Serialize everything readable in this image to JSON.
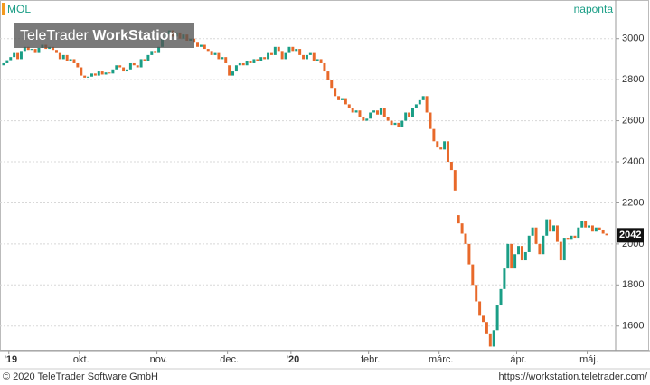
{
  "chart_data": {
    "type": "candlestick",
    "title": "MOL",
    "subtitle": "naponta",
    "watermark_brand": "TeleTrader",
    "watermark_product": "WorkStation",
    "footer_left": "© 2020 TeleTrader Software GmbH",
    "footer_right": "https://workstation.teletrader.com/",
    "up_color": "#1a9e86",
    "down_color": "#e8692a",
    "grid": true,
    "ylim": [
      1480,
      3100
    ],
    "yticks": [
      1600,
      1800,
      2000,
      2200,
      2400,
      2600,
      2800,
      3000
    ],
    "categories": [
      null,
      null,
      "'19",
      null,
      null,
      null,
      null,
      null,
      null,
      null,
      null,
      null,
      null,
      null,
      null,
      null,
      null,
      null,
      null,
      null,
      null,
      null,
      "okt.",
      null,
      null,
      null,
      null,
      null,
      null,
      null,
      null,
      null,
      null,
      null,
      null,
      null,
      null,
      null,
      null,
      null,
      null,
      null,
      null,
      null,
      "nov.",
      null,
      null,
      null,
      null,
      null,
      null,
      null,
      null,
      null,
      null,
      null,
      null,
      null,
      null,
      null,
      null,
      null,
      null,
      null,
      "dec.",
      null,
      null,
      null,
      null,
      null,
      null,
      null,
      null,
      null,
      null,
      null,
      null,
      null,
      null,
      null,
      null,
      null,
      "'20",
      null,
      null,
      null,
      null,
      null,
      null,
      null,
      null,
      null,
      null,
      null,
      null,
      null,
      null,
      null,
      null,
      null,
      null,
      null,
      null,
      null,
      "febr.",
      null,
      null,
      null,
      null,
      null,
      null,
      null,
      null,
      null,
      null,
      null,
      null,
      null,
      null,
      null,
      null,
      null,
      null,
      null,
      "márc.",
      null,
      null,
      null,
      null,
      null,
      null,
      null,
      null,
      null,
      null,
      null,
      null,
      null,
      null,
      null,
      null,
      null,
      null,
      null,
      null,
      null,
      "ápr.",
      null,
      null,
      null,
      null,
      null,
      null,
      null,
      null,
      null,
      null,
      null,
      null,
      null,
      null,
      null,
      null,
      null,
      null,
      null,
      "máj.",
      null,
      null,
      null,
      null,
      null
    ],
    "open": [
      2870,
      2880,
      2895,
      2910,
      2930,
      2900,
      2940,
      2960,
      2945,
      2950,
      2930,
      2955,
      2970,
      2950,
      2960,
      2945,
      2930,
      2900,
      2920,
      2890,
      2900,
      2880,
      2860,
      2820,
      2810,
      2815,
      2830,
      2820,
      2840,
      2825,
      2835,
      2830,
      2850,
      2870,
      2860,
      2840,
      2850,
      2880,
      2870,
      2860,
      2900,
      2890,
      2920,
      2940,
      2930,
      2960,
      3000,
      3020,
      3040,
      3010,
      3030,
      3000,
      3020,
      2990,
      3000,
      2980,
      2960,
      2970,
      2950,
      2940,
      2920,
      2930,
      2900,
      2910,
      2870,
      2820,
      2840,
      2870,
      2880,
      2870,
      2890,
      2880,
      2900,
      2890,
      2910,
      2900,
      2930,
      2920,
      2960,
      2940,
      2900,
      2930,
      2960,
      2940,
      2950,
      2920,
      2900,
      2920,
      2930,
      2890,
      2900,
      2880,
      2840,
      2800,
      2760,
      2720,
      2700,
      2710,
      2680,
      2660,
      2640,
      2650,
      2620,
      2600,
      2610,
      2640,
      2650,
      2630,
      2660,
      2620,
      2600,
      2580,
      2590,
      2570,
      2600,
      2640,
      2620,
      2660,
      2680,
      2700,
      2720,
      2640,
      2560,
      2500,
      2470,
      2460,
      2500,
      2400,
      2360,
      2140,
      2100,
      2050,
      2000,
      1900,
      1800,
      1720,
      1650,
      1620,
      1560,
      1500,
      1580,
      1700,
      1780,
      1880,
      2000,
      1880,
      1950,
      1990,
      1920,
      1960,
      2040,
      2080,
      2000,
      1950,
      2040,
      2120,
      2060,
      2090,
      2010,
      1920,
      2030,
      2020,
      2040,
      2030,
      2080,
      2110,
      2080,
      2090,
      2060,
      2080,
      2070,
      2050
    ],
    "close": [
      2880,
      2895,
      2910,
      2930,
      2900,
      2940,
      2960,
      2945,
      2950,
      2930,
      2955,
      2970,
      2950,
      2960,
      2945,
      2930,
      2900,
      2920,
      2890,
      2900,
      2880,
      2860,
      2820,
      2810,
      2815,
      2830,
      2820,
      2840,
      2825,
      2835,
      2830,
      2850,
      2870,
      2860,
      2840,
      2850,
      2880,
      2870,
      2860,
      2900,
      2890,
      2920,
      2940,
      2930,
      2960,
      3000,
      3020,
      3040,
      3010,
      3030,
      3000,
      3020,
      2990,
      3000,
      2980,
      2960,
      2970,
      2950,
      2940,
      2920,
      2930,
      2900,
      2910,
      2880,
      2820,
      2840,
      2870,
      2880,
      2870,
      2890,
      2880,
      2900,
      2890,
      2910,
      2900,
      2930,
      2920,
      2960,
      2940,
      2900,
      2930,
      2960,
      2940,
      2950,
      2920,
      2900,
      2920,
      2930,
      2890,
      2900,
      2880,
      2840,
      2800,
      2760,
      2720,
      2700,
      2710,
      2680,
      2660,
      2640,
      2650,
      2620,
      2600,
      2610,
      2640,
      2650,
      2630,
      2660,
      2620,
      2600,
      2580,
      2590,
      2570,
      2600,
      2640,
      2620,
      2660,
      2680,
      2700,
      2720,
      2640,
      2560,
      2500,
      2470,
      2460,
      2500,
      2400,
      2360,
      2260,
      2100,
      2050,
      2000,
      1900,
      1800,
      1720,
      1650,
      1620,
      1560,
      1500,
      1580,
      1700,
      1780,
      1880,
      2000,
      1880,
      1950,
      1990,
      1920,
      1960,
      2040,
      2080,
      2000,
      1950,
      2040,
      2120,
      2060,
      2090,
      2010,
      1920,
      2030,
      2020,
      2040,
      2030,
      2080,
      2110,
      2080,
      2090,
      2060,
      2080,
      2070,
      2050,
      2042
    ]
  }
}
